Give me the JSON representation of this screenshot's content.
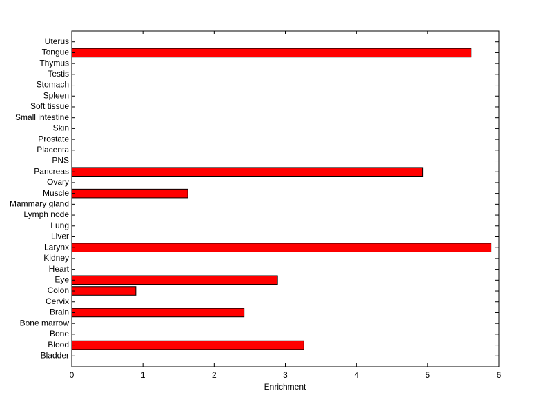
{
  "chart_data": {
    "type": "barh",
    "xlabel": "Enrichment",
    "categories": [
      "Bladder",
      "Blood",
      "Bone",
      "Bone marrow",
      "Brain",
      "Cervix",
      "Colon",
      "Eye",
      "Heart",
      "Kidney",
      "Larynx",
      "Liver",
      "Lung",
      "Lymph node",
      "Mammary gland",
      "Muscle",
      "Ovary",
      "Pancreas",
      "PNS",
      "Placenta",
      "Prostate",
      "Skin",
      "Small intestine",
      "Soft tissue",
      "Spleen",
      "Stomach",
      "Testis",
      "Thymus",
      "Tongue",
      "Uterus"
    ],
    "values": [
      0,
      3.26,
      0,
      0,
      2.42,
      0,
      0.9,
      2.89,
      0,
      0,
      5.89,
      0,
      0,
      0,
      0,
      1.63,
      0,
      4.93,
      0,
      0,
      0,
      0,
      0,
      0,
      0,
      0,
      0,
      0,
      5.61,
      0
    ],
    "color": "#ff0000",
    "xlim": [
      0,
      6
    ],
    "xticks": [
      0,
      1,
      2,
      3,
      4,
      5,
      6
    ]
  }
}
